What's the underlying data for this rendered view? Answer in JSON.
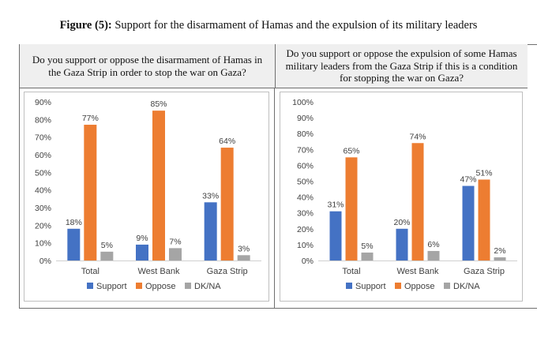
{
  "figure": {
    "title_bold": "Figure (5):",
    "title_rest": " Support for the disarmament of Hamas and the expulsion of its military leaders"
  },
  "columns": {
    "left_question": "Do you support or oppose the disarmament of Hamas in the Gaza Strip in order to stop the war on Gaza?",
    "right_question": "Do you support or oppose the expulsion of some Hamas military leaders from the Gaza Strip if this is a condition for stopping the war on Gaza?"
  },
  "colors": {
    "support": "#4472c4",
    "oppose": "#ed7d31",
    "dkna": "#a5a5a5"
  },
  "chart_data": [
    {
      "type": "bar",
      "categories": [
        "Total",
        "West Bank",
        "Gaza Strip"
      ],
      "series": [
        {
          "name": "Support",
          "values": [
            18,
            9,
            33
          ],
          "labels": [
            "18%",
            "9%",
            "33%"
          ]
        },
        {
          "name": "Oppose",
          "values": [
            77,
            85,
            64
          ],
          "labels": [
            "77%",
            "85%",
            "64%"
          ]
        },
        {
          "name": "DK/NA",
          "values": [
            5,
            7,
            3
          ],
          "labels": [
            "5%",
            "7%",
            "3%"
          ]
        }
      ],
      "ylim": [
        0,
        90
      ],
      "yticks": [
        0,
        10,
        20,
        30,
        40,
        50,
        60,
        70,
        80,
        90
      ],
      "ytick_labels": [
        "0%",
        "10%",
        "20%",
        "30%",
        "40%",
        "50%",
        "60%",
        "70%",
        "80%",
        "90%"
      ],
      "legend": "bottom",
      "grid": false
    },
    {
      "type": "bar",
      "categories": [
        "Total",
        "West Bank",
        "Gaza Strip"
      ],
      "series": [
        {
          "name": "Support",
          "values": [
            31,
            20,
            47
          ],
          "labels": [
            "31%",
            "20%",
            "47%"
          ]
        },
        {
          "name": "Oppose",
          "values": [
            65,
            74,
            51
          ],
          "labels": [
            "65%",
            "74%",
            "51%"
          ]
        },
        {
          "name": "DK/NA",
          "values": [
            5,
            6,
            2
          ],
          "labels": [
            "5%",
            "6%",
            "2%"
          ]
        }
      ],
      "ylim": [
        0,
        100
      ],
      "yticks": [
        0,
        10,
        20,
        30,
        40,
        50,
        60,
        70,
        80,
        90,
        100
      ],
      "ytick_labels": [
        "0%",
        "10%",
        "20%",
        "30%",
        "40%",
        "50%",
        "60%",
        "70%",
        "80%",
        "90%",
        "100%"
      ],
      "legend": "bottom",
      "grid": false
    }
  ]
}
